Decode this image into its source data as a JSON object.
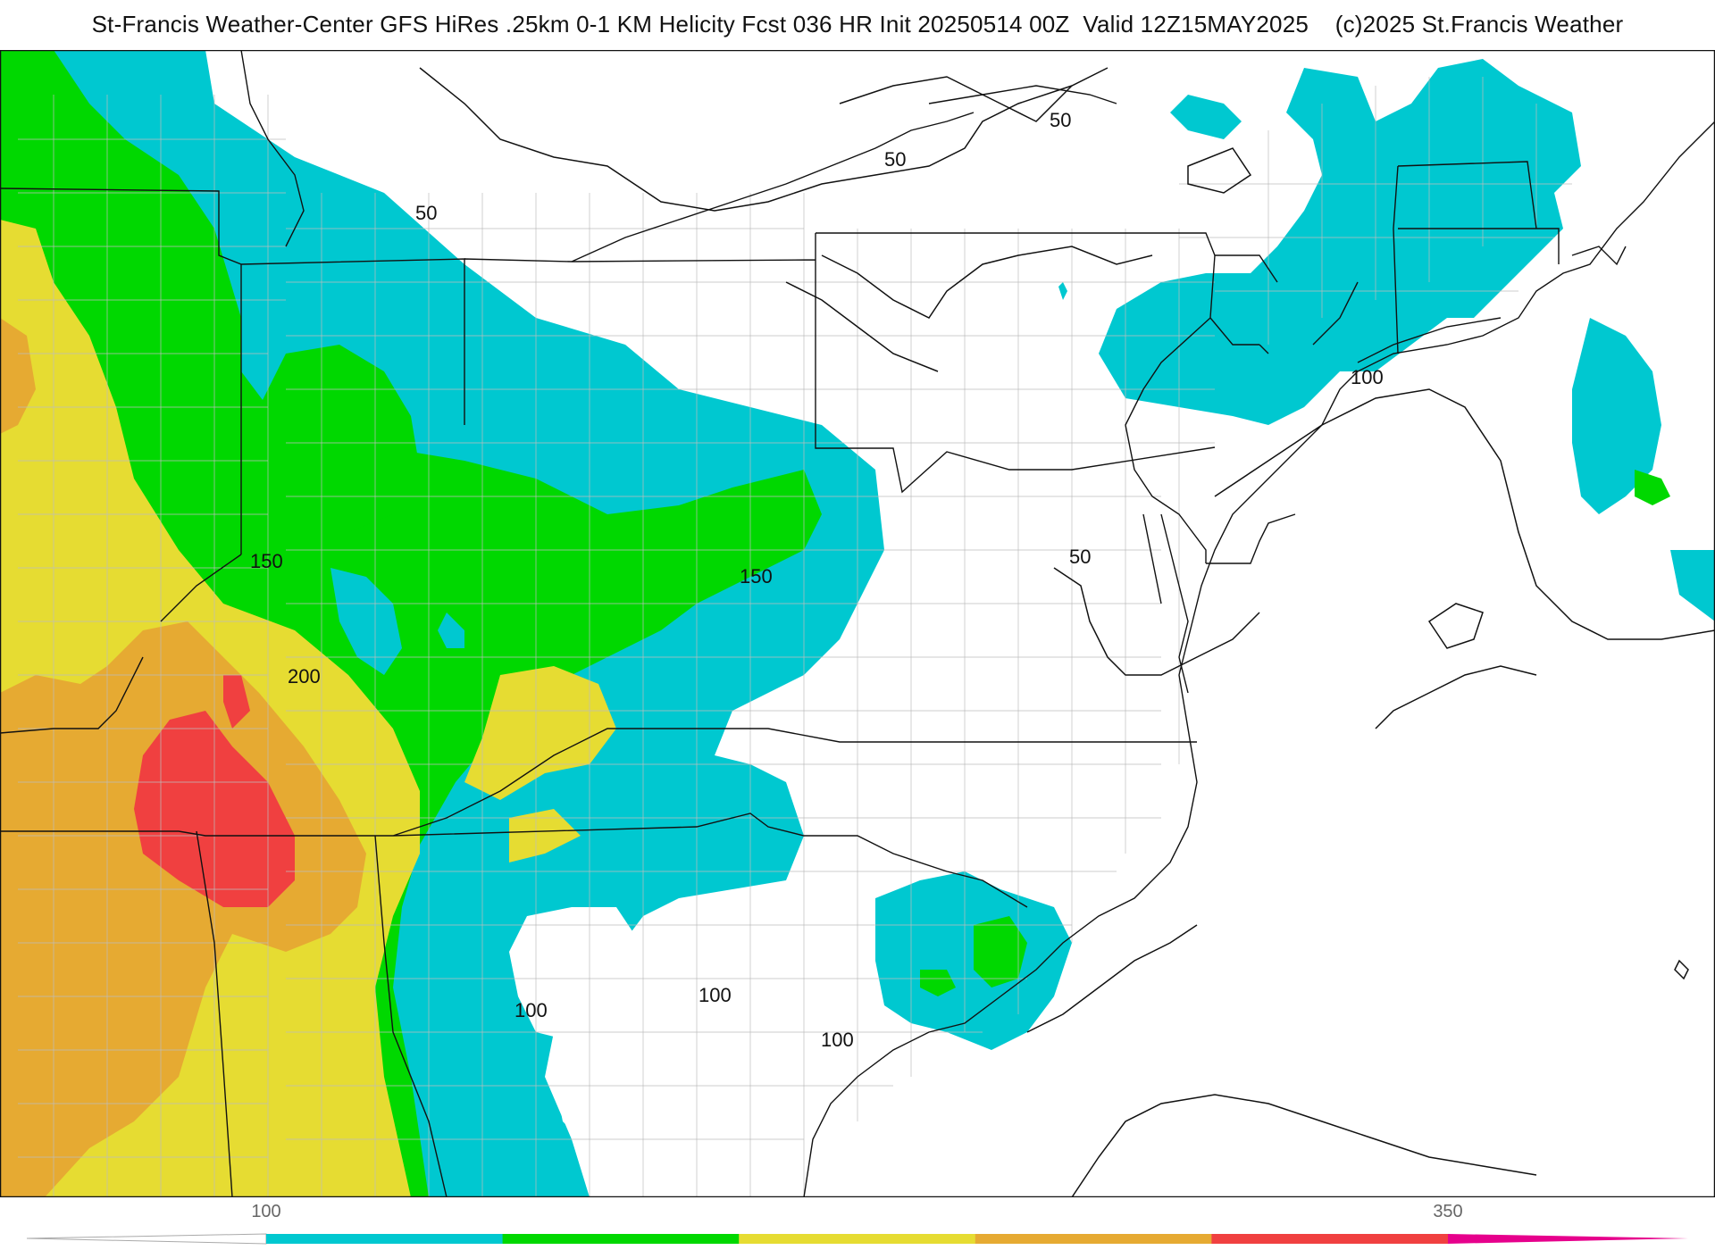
{
  "title": "St-Francis Weather-Center GFS HiRes .25km 0-1 KM Helicity Fcst 036 HR Init 20250514 00Z  Valid 12Z15MAY2025    (c)2025 St.Francis Weather",
  "contour_labels": [
    "50",
    "50",
    "50",
    "50",
    "100",
    "100",
    "100",
    "100",
    "150",
    "150",
    "200"
  ],
  "colorbar": {
    "tick_labels": [
      "100",
      "350"
    ],
    "colors": [
      "#00c8d0",
      "#00d800",
      "#e6dc32",
      "#e6aa32",
      "#f04040",
      "#e6008c"
    ]
  },
  "palette": {
    "cyan": "#00c8d0",
    "green": "#00d800",
    "yellow": "#e6dc32",
    "orange": "#e6aa32",
    "red": "#f04040"
  }
}
